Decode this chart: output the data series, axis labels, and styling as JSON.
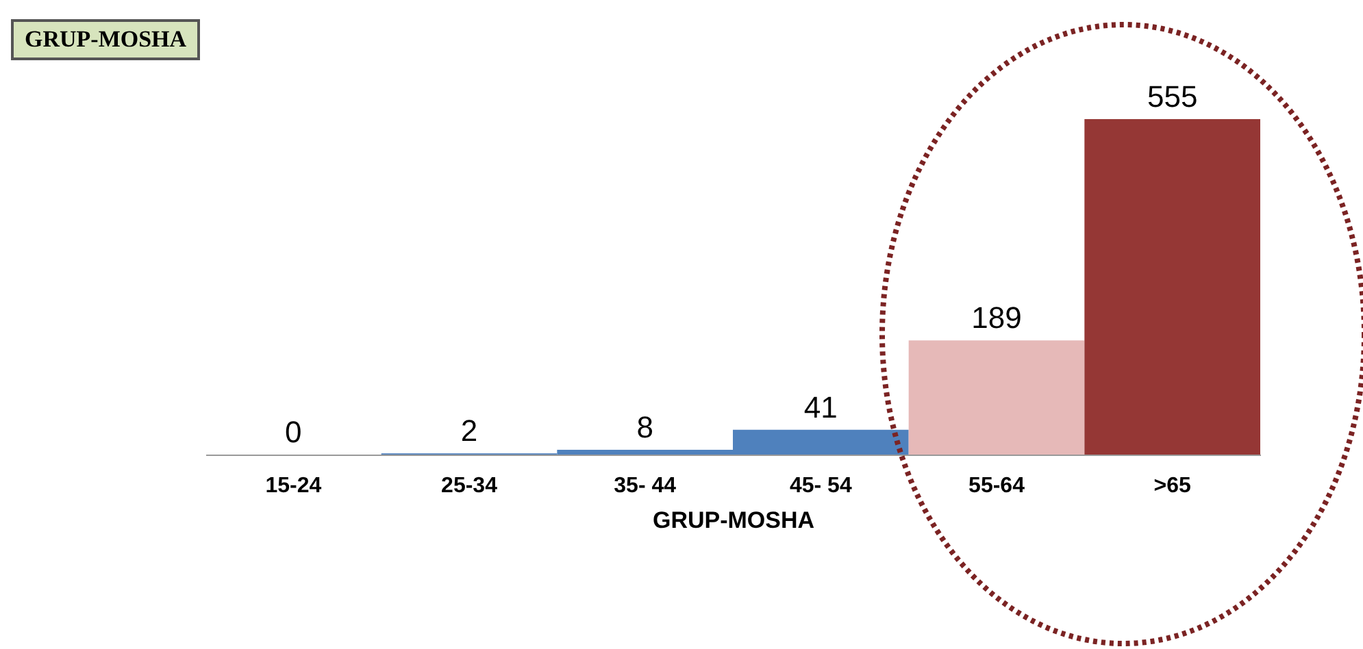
{
  "chart_data": {
    "type": "bar",
    "title": "GRUP-MOSHA",
    "xlabel": "GRUP-MOSHA",
    "categories": [
      "15-24",
      "25-34",
      "35- 44",
      "45- 54",
      "55-64",
      ">65"
    ],
    "values": [
      0,
      2,
      8,
      41,
      189,
      555
    ],
    "colors": [
      "#4f81bd",
      "#4f81bd",
      "#4f81bd",
      "#4f81bd",
      "#e6b9b8",
      "#953735"
    ],
    "data_labels": true,
    "grid": false
  }
}
